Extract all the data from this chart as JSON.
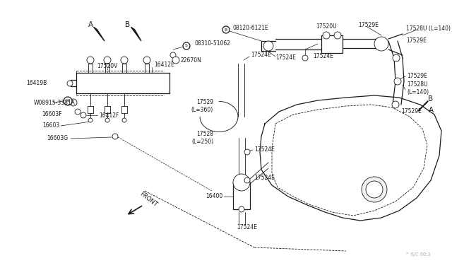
{
  "bg_color": "#ffffff",
  "line_color": "#1a1a1a",
  "fig_width": 6.4,
  "fig_height": 3.72,
  "dpi": 100,
  "watermark": "^ 6/C 00:3",
  "labels": {
    "A_left": "A",
    "B_left": "B",
    "A_right": "A",
    "B_right": "B",
    "front": "FRONT",
    "part_17520V": "17520V",
    "part_16419B": "16419B",
    "part_08915": "W08915-3381A",
    "part_16603F": "16603F",
    "part_16412F": "16412F",
    "part_16603": "16603",
    "part_16603G": "16603G",
    "part_16412E": "16412E",
    "part_22670N": "22670N",
    "part_08120": "08120-6121E",
    "part_08310": "08310-51062",
    "part_17524E_1": "17524E",
    "part_17524E_top": "17524E",
    "part_17529_360": "17529\n(L=360)",
    "part_17528_250": "17528\n(L=250)",
    "part_17524E_2": "17524E",
    "part_16400": "16400",
    "part_17524E_3": "17524E",
    "part_17520U": "17520U",
    "part_17529E_1": "17529E",
    "part_17528U_140_1": "17528U (L=140)",
    "part_17529E_2": "17529E",
    "part_17524E_4": "17524E",
    "part_17529E_3": "17529E",
    "part_17528U_140_2": "17528U\n(L=140)",
    "part_17529E_4": "17529E"
  },
  "font_size_label": 6.0,
  "font_size_small": 5.5,
  "font_size_tiny": 4.8,
  "font_size_ab": 7.5
}
